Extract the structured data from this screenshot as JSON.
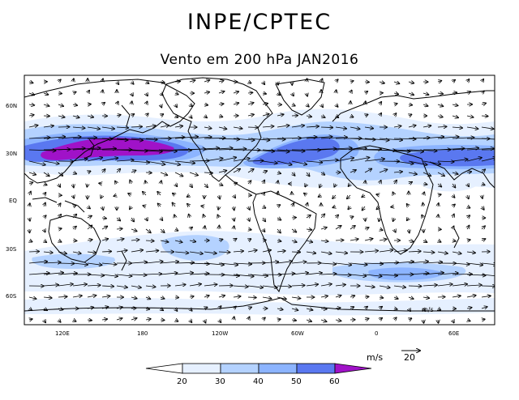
{
  "header": {
    "title": "INPE/CPTEC",
    "subtitle": "Vento em 200 hPa JAN2016"
  },
  "map": {
    "lat_labels": [
      "60N",
      "30N",
      "EQ",
      "30S",
      "60S"
    ],
    "lon_labels": [
      "120E",
      "180",
      "120W",
      "60W",
      "0",
      "60E"
    ],
    "inner_unit": "m/s",
    "colors": {
      "speed_20_30": "#e6f0ff",
      "speed_30_40": "#b4d2ff",
      "speed_40_50": "#8cb4ff",
      "speed_50_60": "#5a78f0",
      "speed_60_plus": "#a012c8",
      "coastline": "#000000",
      "vector": "#000000"
    }
  },
  "legend": {
    "unit": "m/s",
    "reference_vector": "20",
    "ticks": [
      "20",
      "30",
      "40",
      "50",
      "60"
    ],
    "colors": [
      "#ffffff",
      "#e6f0ff",
      "#b4d2ff",
      "#8cb4ff",
      "#5a78f0",
      "#a012c8"
    ]
  }
}
